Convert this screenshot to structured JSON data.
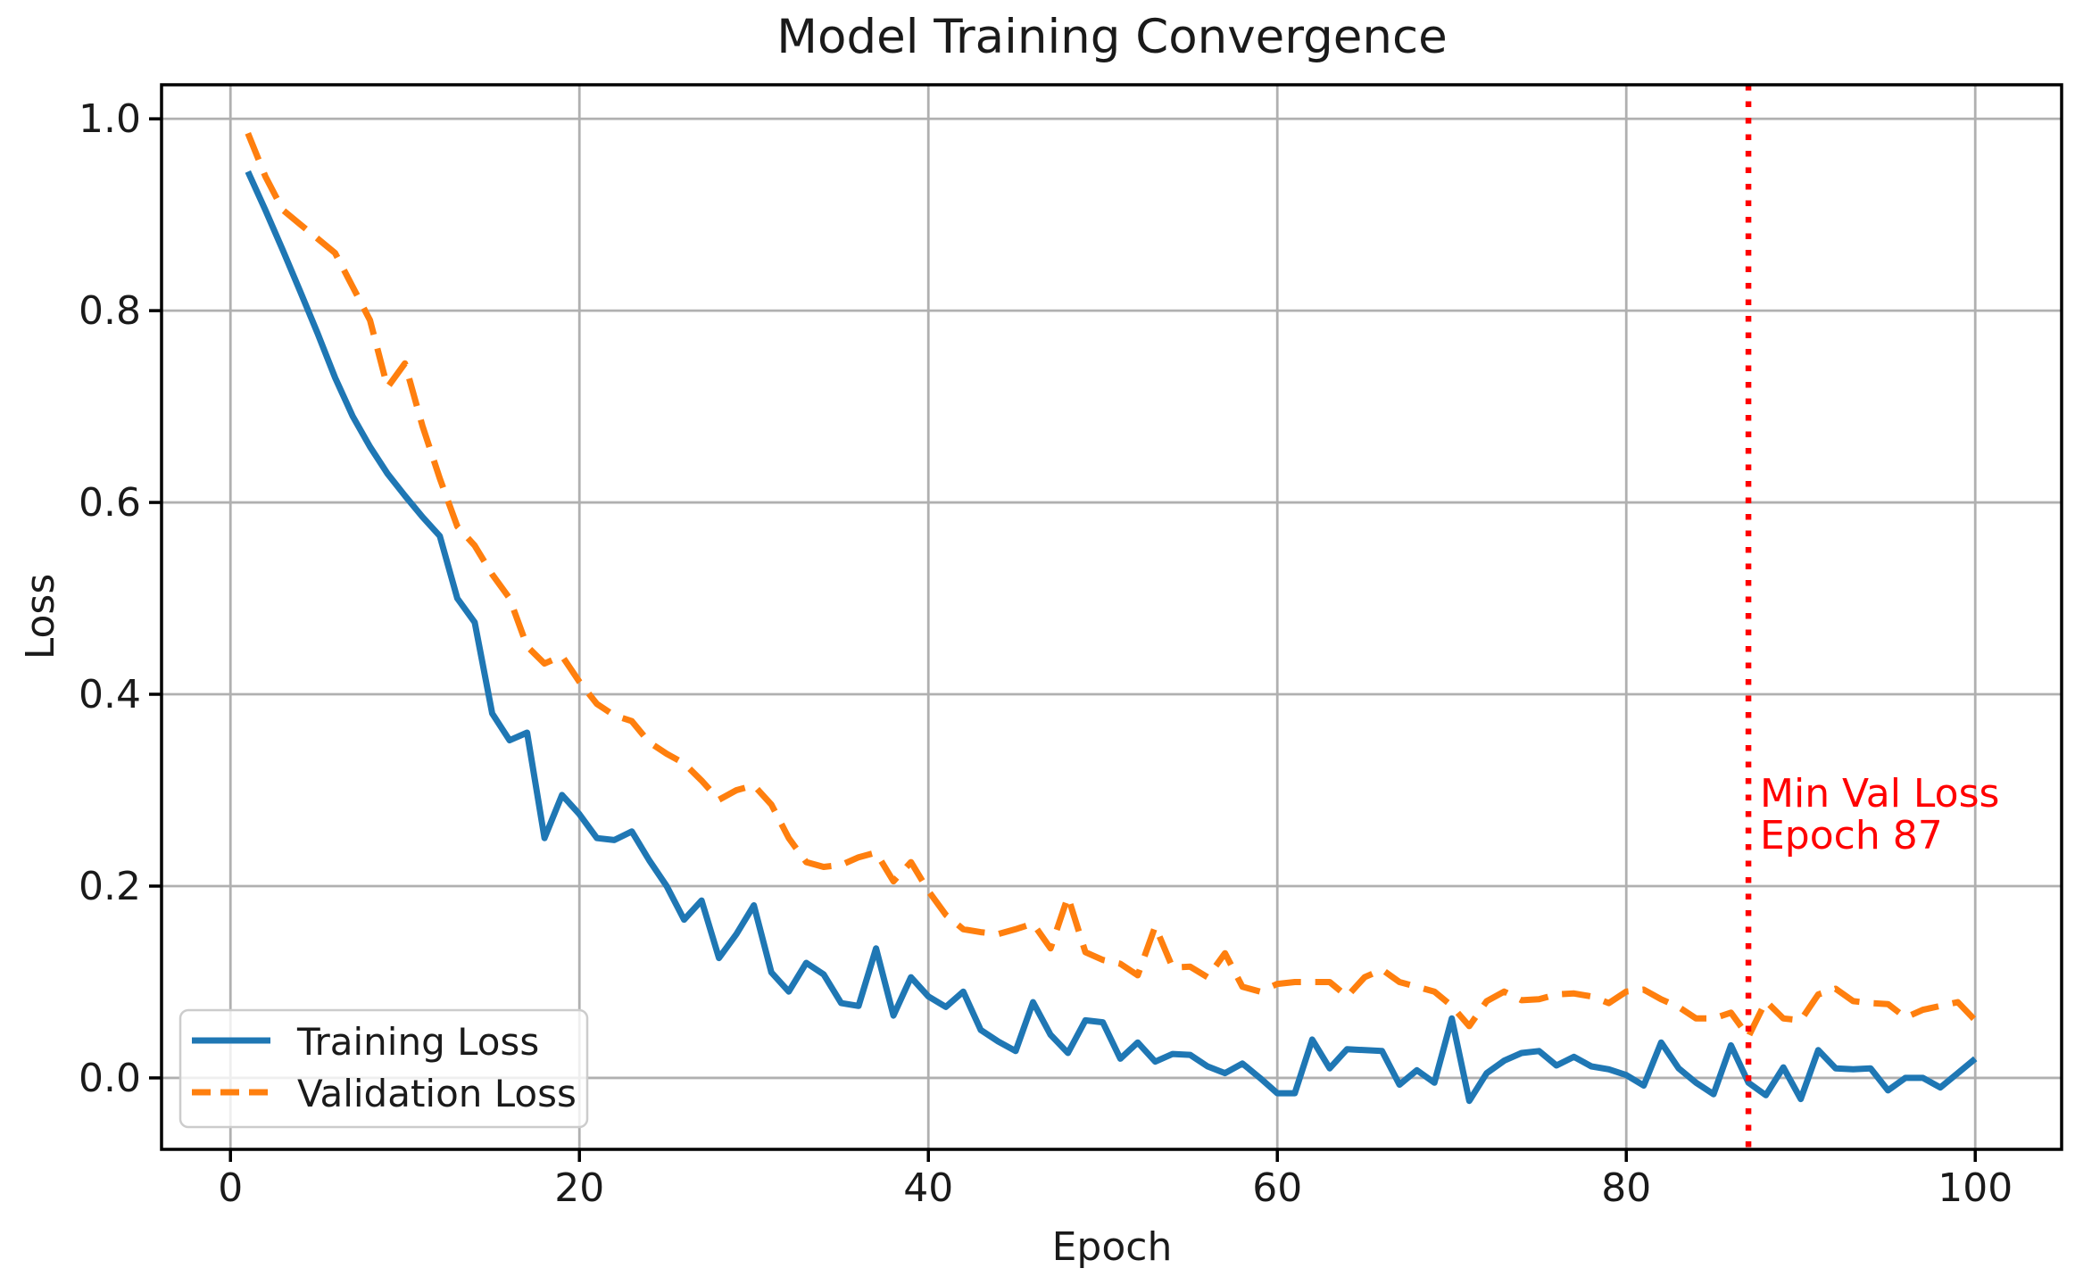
{
  "figure": {
    "title": "Model Training Convergence"
  },
  "chart_data": {
    "type": "line",
    "title": "Model Training Convergence",
    "axes": {
      "x_label": "Epoch",
      "y_label": "Loss",
      "x_ticks": [
        0,
        20,
        40,
        60,
        80,
        100
      ],
      "y_ticks": [
        "0.0",
        "0.2",
        "0.4",
        "0.6",
        "0.8",
        "1.0"
      ],
      "x_lim": [
        -3.95,
        104.95
      ],
      "y_lim": [
        -0.0745,
        1.0355
      ],
      "grid": true,
      "grid_color": "#b0b0b0"
    },
    "x": [
      1,
      2,
      3,
      4,
      5,
      6,
      7,
      8,
      9,
      10,
      11,
      12,
      13,
      14,
      15,
      16,
      17,
      18,
      19,
      20,
      21,
      22,
      23,
      24,
      25,
      26,
      27,
      28,
      29,
      30,
      31,
      32,
      33,
      34,
      35,
      36,
      37,
      38,
      39,
      40,
      41,
      42,
      43,
      44,
      45,
      46,
      47,
      48,
      49,
      50,
      51,
      52,
      53,
      54,
      55,
      56,
      57,
      58,
      59,
      60,
      61,
      62,
      63,
      64,
      65,
      66,
      67,
      68,
      69,
      70,
      71,
      72,
      73,
      74,
      75,
      76,
      77,
      78,
      79,
      80,
      81,
      82,
      83,
      84,
      85,
      86,
      87,
      88,
      89,
      90,
      91,
      92,
      93,
      94,
      95,
      96,
      97,
      98,
      99,
      100
    ],
    "series": [
      {
        "name": "Training Loss",
        "color": "#1f77b4",
        "style": "solid",
        "values": [
          0.945,
          0.905,
          0.863,
          0.82,
          0.776,
          0.73,
          0.69,
          0.658,
          0.63,
          0.607,
          0.585,
          0.565,
          0.5,
          0.475,
          0.38,
          0.352,
          0.36,
          0.25,
          0.295,
          0.275,
          0.25,
          0.248,
          0.257,
          0.227,
          0.2,
          0.165,
          0.185,
          0.125,
          0.15,
          0.18,
          0.11,
          0.09,
          0.12,
          0.108,
          0.078,
          0.075,
          0.135,
          0.065,
          0.105,
          0.085,
          0.074,
          0.09,
          0.05,
          0.038,
          0.028,
          0.079,
          0.045,
          0.026,
          0.06,
          0.058,
          0.02,
          0.037,
          0.017,
          0.025,
          0.024,
          0.012,
          0.005,
          0.015,
          0.0,
          -0.016,
          -0.016,
          0.04,
          0.01,
          0.03,
          0.029,
          0.028,
          -0.007,
          0.008,
          -0.005,
          0.062,
          -0.024,
          0.005,
          0.018,
          0.026,
          0.028,
          0.013,
          0.022,
          0.012,
          0.009,
          0.003,
          -0.008,
          0.037,
          0.01,
          -0.005,
          -0.017,
          0.034,
          -0.005,
          -0.018,
          0.011,
          -0.022,
          0.029,
          0.01,
          0.009,
          0.01,
          -0.013,
          0.0,
          0.0,
          -0.01,
          0.005,
          0.02
        ]
      },
      {
        "name": "Validation Loss",
        "color": "#ff7f0e",
        "style": "dashed",
        "values": [
          0.985,
          0.94,
          0.905,
          0.89,
          0.875,
          0.86,
          0.825,
          0.79,
          0.72,
          0.745,
          0.68,
          0.625,
          0.575,
          0.555,
          0.525,
          0.5,
          0.45,
          0.432,
          0.44,
          0.413,
          0.39,
          0.378,
          0.372,
          0.35,
          0.338,
          0.328,
          0.31,
          0.29,
          0.3,
          0.305,
          0.285,
          0.25,
          0.225,
          0.22,
          0.222,
          0.23,
          0.235,
          0.205,
          0.225,
          0.195,
          0.17,
          0.155,
          0.152,
          0.15,
          0.155,
          0.161,
          0.135,
          0.189,
          0.131,
          0.123,
          0.119,
          0.107,
          0.158,
          0.115,
          0.116,
          0.105,
          0.13,
          0.095,
          0.09,
          0.098,
          0.1,
          0.1,
          0.1,
          0.085,
          0.105,
          0.113,
          0.1,
          0.095,
          0.09,
          0.075,
          0.054,
          0.08,
          0.09,
          0.081,
          0.082,
          0.087,
          0.088,
          0.085,
          0.078,
          0.09,
          0.092,
          0.082,
          0.074,
          0.062,
          0.062,
          0.068,
          0.043,
          0.08,
          0.062,
          0.06,
          0.087,
          0.093,
          0.08,
          0.078,
          0.077,
          0.063,
          0.071,
          0.075,
          0.079,
          0.06
        ]
      }
    ],
    "vline": {
      "x": 87,
      "color": "#ff0000",
      "style": "dotted"
    },
    "annotation": {
      "line1": "Min Val Loss",
      "line2": "Epoch 87",
      "color": "#ff0000",
      "x_epoch": 87
    },
    "legend": {
      "position": "lower left",
      "items": [
        {
          "label": "Training Loss"
        },
        {
          "label": "Validation Loss"
        }
      ]
    }
  }
}
